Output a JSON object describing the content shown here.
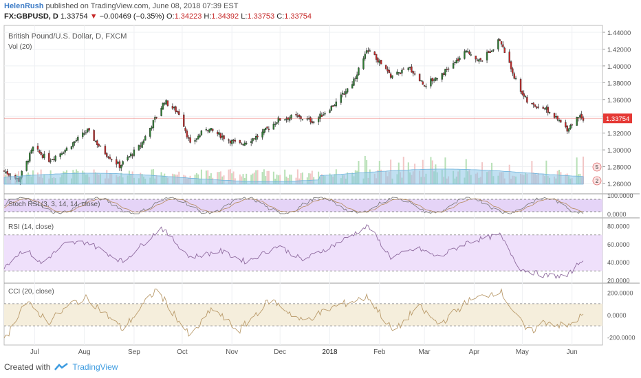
{
  "header": {
    "author": "HelenRush",
    "published": "published on TradingView.com, June 08, 2018 07:39 EST"
  },
  "symbol_line": {
    "symbol": "FX:GBPUSD, D",
    "last": "1.33754",
    "change": "−0.00469 (−0.35%)",
    "o_label": "O:",
    "o": "1.34223",
    "h_label": "H:",
    "h": "1.34392",
    "l_label": "L:",
    "l": "1.33753",
    "c_label": "C:",
    "c": "1.33754"
  },
  "footer": {
    "created_with": "Created with",
    "brand": "TradingView"
  },
  "colors": {
    "up": "#2e7d32",
    "down": "#c62828",
    "volume_up": "#b7e0b6",
    "volume_down": "#f2c6c6",
    "volume_ma": "#8cc6e8",
    "stoch_band": "#e5d4f7",
    "rsi_band": "#efe0fb",
    "cci_band": "#f5eedc",
    "price_tag": "#e53935",
    "accent": "#3c7bc6"
  },
  "chart_data": [
    {
      "type": "candlestick",
      "title": "British Pound/U.S. Dollar, D, FXCM",
      "volume_label": "Vol (20)",
      "x_tick_labels": [
        "Jul",
        "Aug",
        "Sep",
        "Oct",
        "Nov",
        "Dec",
        "2018",
        "Feb",
        "Mar",
        "Apr",
        "May",
        "Jun"
      ],
      "y_tick_labels": [
        "1.44000",
        "1.42000",
        "1.40000",
        "1.38000",
        "1.36000",
        "1.34000",
        "1.32000",
        "1.30000",
        "1.28000",
        "1.26000"
      ],
      "ylim": [
        1.25,
        1.445
      ],
      "last_price_label": "1.33754",
      "last_price": 1.33754,
      "volume_markers": [
        "5",
        "2"
      ],
      "close_path": [
        {
          "x": "2017-06-12",
          "y": 1.275
        },
        {
          "x": "2017-06-21",
          "y": 1.264
        },
        {
          "x": "2017-06-30",
          "y": 1.302
        },
        {
          "x": "2017-07-10",
          "y": 1.288
        },
        {
          "x": "2017-07-20",
          "y": 1.3
        },
        {
          "x": "2017-08-03",
          "y": 1.323
        },
        {
          "x": "2017-08-12",
          "y": 1.3
        },
        {
          "x": "2017-08-23",
          "y": 1.281
        },
        {
          "x": "2017-09-05",
          "y": 1.305
        },
        {
          "x": "2017-09-20",
          "y": 1.358
        },
        {
          "x": "2017-09-30",
          "y": 1.342
        },
        {
          "x": "2017-10-06",
          "y": 1.306
        },
        {
          "x": "2017-10-16",
          "y": 1.326
        },
        {
          "x": "2017-10-30",
          "y": 1.312
        },
        {
          "x": "2017-11-05",
          "y": 1.306
        },
        {
          "x": "2017-11-18",
          "y": 1.317
        },
        {
          "x": "2017-11-30",
          "y": 1.336
        },
        {
          "x": "2017-12-10",
          "y": 1.34
        },
        {
          "x": "2017-12-22",
          "y": 1.334
        },
        {
          "x": "2018-01-05",
          "y": 1.356
        },
        {
          "x": "2018-01-15",
          "y": 1.38
        },
        {
          "x": "2018-01-25",
          "y": 1.42
        },
        {
          "x": "2018-02-08",
          "y": 1.388
        },
        {
          "x": "2018-02-20",
          "y": 1.397
        },
        {
          "x": "2018-03-01",
          "y": 1.377
        },
        {
          "x": "2018-03-15",
          "y": 1.395
        },
        {
          "x": "2018-03-28",
          "y": 1.418
        },
        {
          "x": "2018-04-05",
          "y": 1.405
        },
        {
          "x": "2018-04-17",
          "y": 1.431
        },
        {
          "x": "2018-04-28",
          "y": 1.378
        },
        {
          "x": "2018-05-05",
          "y": 1.354
        },
        {
          "x": "2018-05-15",
          "y": 1.35
        },
        {
          "x": "2018-05-29",
          "y": 1.325
        },
        {
          "x": "2018-06-06",
          "y": 1.342
        },
        {
          "x": "2018-06-08",
          "y": 1.3375
        }
      ]
    },
    {
      "type": "line",
      "title": "Stoch RSI (3, 3, 14, 14, close)",
      "y_tick_labels": [
        "100.0000",
        "0.0000"
      ],
      "band": [
        20,
        80
      ]
    },
    {
      "type": "line",
      "title": "RSI (14, close)",
      "y_tick_labels": [
        "80.0000",
        "60.0000",
        "40.0000",
        "20.0000"
      ],
      "band": [
        30,
        70
      ],
      "ylim": [
        18,
        85
      ],
      "values_path": [
        {
          "x": "2017-06-12",
          "y": 35
        },
        {
          "x": "2017-06-25",
          "y": 55
        },
        {
          "x": "2017-07-05",
          "y": 38
        },
        {
          "x": "2017-07-20",
          "y": 60
        },
        {
          "x": "2017-08-03",
          "y": 62
        },
        {
          "x": "2017-08-25",
          "y": 40
        },
        {
          "x": "2017-09-18",
          "y": 78
        },
        {
          "x": "2017-10-06",
          "y": 45
        },
        {
          "x": "2017-10-25",
          "y": 52
        },
        {
          "x": "2017-11-10",
          "y": 40
        },
        {
          "x": "2017-11-30",
          "y": 58
        },
        {
          "x": "2017-12-15",
          "y": 42
        },
        {
          "x": "2018-01-05",
          "y": 60
        },
        {
          "x": "2018-01-25",
          "y": 80
        },
        {
          "x": "2018-02-08",
          "y": 45
        },
        {
          "x": "2018-02-25",
          "y": 55
        },
        {
          "x": "2018-03-10",
          "y": 45
        },
        {
          "x": "2018-03-28",
          "y": 62
        },
        {
          "x": "2018-04-17",
          "y": 70
        },
        {
          "x": "2018-04-30",
          "y": 32
        },
        {
          "x": "2018-05-15",
          "y": 25
        },
        {
          "x": "2018-05-29",
          "y": 24
        },
        {
          "x": "2018-06-08",
          "y": 44
        }
      ]
    },
    {
      "type": "line",
      "title": "CCI (20, close)",
      "y_tick_labels": [
        "200.0000",
        "0.0000",
        "-200.0000"
      ],
      "band": [
        -100,
        100
      ],
      "ylim": [
        -260,
        260
      ],
      "values_path": [
        {
          "x": "2017-06-12",
          "y": -240
        },
        {
          "x": "2017-06-25",
          "y": 120
        },
        {
          "x": "2017-07-10",
          "y": -60
        },
        {
          "x": "2017-07-25",
          "y": 110
        },
        {
          "x": "2017-08-03",
          "y": 150
        },
        {
          "x": "2017-08-25",
          "y": -130
        },
        {
          "x": "2017-09-15",
          "y": 230
        },
        {
          "x": "2017-10-06",
          "y": -200
        },
        {
          "x": "2017-10-20",
          "y": 60
        },
        {
          "x": "2017-11-05",
          "y": -150
        },
        {
          "x": "2017-11-25",
          "y": 140
        },
        {
          "x": "2017-12-15",
          "y": -60
        },
        {
          "x": "2018-01-05",
          "y": 80
        },
        {
          "x": "2018-01-25",
          "y": 160
        },
        {
          "x": "2018-02-10",
          "y": -160
        },
        {
          "x": "2018-02-25",
          "y": 80
        },
        {
          "x": "2018-03-10",
          "y": -90
        },
        {
          "x": "2018-03-28",
          "y": 120
        },
        {
          "x": "2018-04-17",
          "y": 220
        },
        {
          "x": "2018-05-05",
          "y": -170
        },
        {
          "x": "2018-05-15",
          "y": -60
        },
        {
          "x": "2018-05-29",
          "y": -110
        },
        {
          "x": "2018-06-08",
          "y": 0
        }
      ]
    }
  ]
}
